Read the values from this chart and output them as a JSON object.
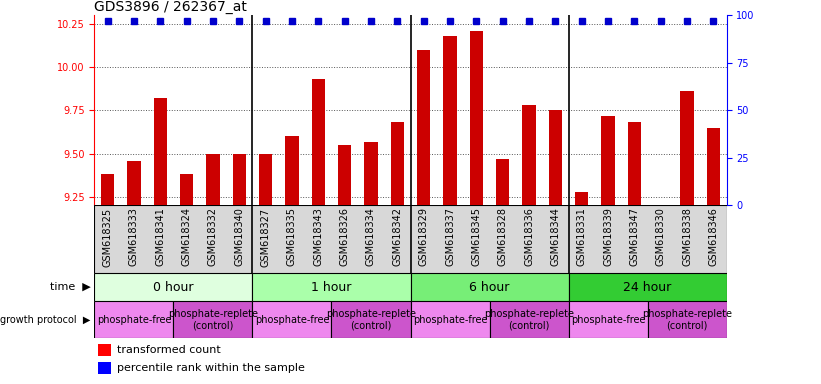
{
  "title": "GDS3896 / 262367_at",
  "samples": [
    "GSM618325",
    "GSM618333",
    "GSM618341",
    "GSM618324",
    "GSM618332",
    "GSM618340",
    "GSM618327",
    "GSM618335",
    "GSM618343",
    "GSM618326",
    "GSM618334",
    "GSM618342",
    "GSM618329",
    "GSM618337",
    "GSM618345",
    "GSM618328",
    "GSM618336",
    "GSM618344",
    "GSM618331",
    "GSM618339",
    "GSM618347",
    "GSM618330",
    "GSM618338",
    "GSM618346"
  ],
  "transformed_count": [
    9.38,
    9.46,
    9.82,
    9.38,
    9.5,
    9.5,
    9.5,
    9.6,
    9.93,
    9.55,
    9.57,
    9.68,
    10.1,
    10.18,
    10.21,
    9.47,
    9.78,
    9.75,
    9.28,
    9.72,
    9.68,
    9.2,
    9.86,
    9.65
  ],
  "percentile_rank": [
    97,
    97,
    97,
    97,
    97,
    97,
    97,
    97,
    97,
    97,
    97,
    97,
    97,
    97,
    97,
    97,
    97,
    97,
    97,
    97,
    97,
    97,
    97,
    97
  ],
  "time_groups": [
    {
      "label": "0 hour",
      "start": 0,
      "end": 6,
      "color": "#dfffdf"
    },
    {
      "label": "1 hour",
      "start": 6,
      "end": 12,
      "color": "#aaffaa"
    },
    {
      "label": "6 hour",
      "start": 12,
      "end": 18,
      "color": "#77ee77"
    },
    {
      "label": "24 hour",
      "start": 18,
      "end": 24,
      "color": "#33cc33"
    }
  ],
  "protocol_groups": [
    {
      "label": "phosphate-free",
      "start": 0,
      "end": 3,
      "color": "#ee88ee"
    },
    {
      "label": "phosphate-replete\n(control)",
      "start": 3,
      "end": 6,
      "color": "#cc55cc"
    },
    {
      "label": "phosphate-free",
      "start": 6,
      "end": 9,
      "color": "#ee88ee"
    },
    {
      "label": "phosphate-replete\n(control)",
      "start": 9,
      "end": 12,
      "color": "#cc55cc"
    },
    {
      "label": "phosphate-free",
      "start": 12,
      "end": 15,
      "color": "#ee88ee"
    },
    {
      "label": "phosphate-replete\n(control)",
      "start": 15,
      "end": 18,
      "color": "#cc55cc"
    },
    {
      "label": "phosphate-free",
      "start": 18,
      "end": 21,
      "color": "#ee88ee"
    },
    {
      "label": "phosphate-replete\n(control)",
      "start": 21,
      "end": 24,
      "color": "#cc55cc"
    }
  ],
  "ylim_left": [
    9.2,
    10.3
  ],
  "yticks_left": [
    9.25,
    9.5,
    9.75,
    10.0,
    10.25
  ],
  "ylim_right": [
    0,
    100
  ],
  "yticks_right": [
    0,
    25,
    50,
    75,
    100
  ],
  "bar_color": "#cc0000",
  "dot_color": "#0000cc",
  "bar_width": 0.5,
  "background_color": "#ffffff",
  "grid_color": "#555555",
  "title_fontsize": 10,
  "tick_fontsize": 7,
  "label_fontsize": 8,
  "time_label_fontsize": 9,
  "protocol_label_fontsize": 7
}
